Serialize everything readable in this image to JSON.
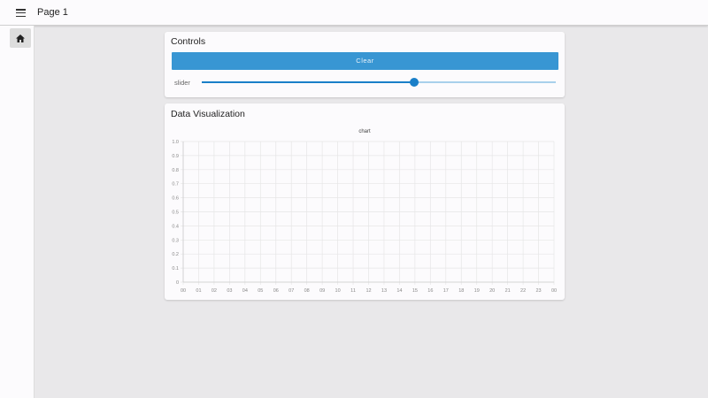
{
  "header": {
    "title": "Page 1",
    "menu_icon": "hamburger-icon"
  },
  "sidebar": {
    "items": [
      {
        "icon": "home-icon",
        "active": true
      }
    ]
  },
  "controls": {
    "title": "Controls",
    "clear_label": "Clear",
    "slider_label": "slider",
    "slider_value": 0.6,
    "accent": "#3896d3"
  },
  "viz": {
    "title": "Data Visualization"
  },
  "chart_data": {
    "type": "line",
    "title": "chart",
    "series": [],
    "x_ticks": [
      "00",
      "01",
      "02",
      "03",
      "04",
      "05",
      "06",
      "07",
      "08",
      "09",
      "10",
      "11",
      "12",
      "13",
      "14",
      "15",
      "16",
      "17",
      "18",
      "19",
      "20",
      "21",
      "22",
      "23",
      "00"
    ],
    "y_ticks": [
      "0",
      "0.1",
      "0.2",
      "0.3",
      "0.4",
      "0.5",
      "0.6",
      "0.7",
      "0.8",
      "0.9",
      "1.0"
    ],
    "ylim": [
      0,
      1
    ],
    "grid": true
  }
}
